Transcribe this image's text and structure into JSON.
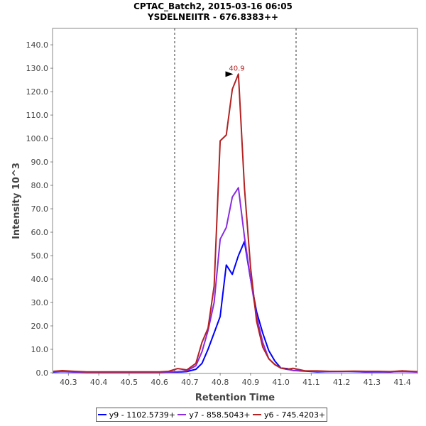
{
  "chart_data": {
    "type": "line",
    "title": "CPTAC_Batch2, 2015-03-16 06:05",
    "subtitle": "YSDELNEIITR - 676.8383++",
    "xlabel": "Retention Time",
    "ylabel": "Intensity 10^3",
    "xlim": [
      40.25,
      41.45
    ],
    "ylim": [
      0,
      147
    ],
    "x_ticks": [
      "40.3",
      "40.4",
      "40.5",
      "40.6",
      "40.7",
      "40.8",
      "40.9",
      "41.0",
      "41.1",
      "41.2",
      "41.3",
      "41.4"
    ],
    "x_tick_values": [
      40.3,
      40.4,
      40.5,
      40.6,
      40.7,
      40.8,
      40.9,
      41.0,
      41.1,
      41.2,
      41.3,
      41.4
    ],
    "y_ticks": [
      "0.0",
      "10.0",
      "20.0",
      "30.0",
      "40.0",
      "50.0",
      "60.0",
      "70.0",
      "80.0",
      "90.0",
      "100.0",
      "110.0",
      "120.0",
      "130.0",
      "140.0"
    ],
    "y_tick_values": [
      0,
      10,
      20,
      30,
      40,
      50,
      60,
      70,
      80,
      90,
      100,
      110,
      120,
      130,
      140
    ],
    "boundaries": [
      40.65,
      41.05
    ],
    "peak_annotation": {
      "label": "40.9",
      "x": 40.85,
      "y": 127.5
    },
    "series": [
      {
        "name": "y9 - 1102.5739+",
        "color": "#0000ff",
        "x": [
          40.25,
          40.28,
          40.32,
          40.36,
          40.4,
          40.45,
          40.5,
          40.55,
          40.6,
          40.63,
          40.66,
          40.69,
          40.72,
          40.74,
          40.76,
          40.78,
          40.8,
          40.82,
          40.84,
          40.86,
          40.88,
          40.9,
          40.92,
          40.94,
          40.96,
          40.98,
          41.0,
          41.02,
          41.04,
          41.08,
          41.12,
          41.16,
          41.2,
          41.24,
          41.28,
          41.32,
          41.36,
          41.4,
          41.45
        ],
        "values": [
          0.3,
          0.5,
          0.3,
          0.2,
          0.2,
          0.2,
          0.2,
          0.2,
          0.2,
          0.3,
          0.3,
          0.5,
          1.5,
          4,
          10,
          17,
          24,
          46,
          42,
          50,
          56,
          40,
          26,
          17,
          9.5,
          5,
          2,
          1.8,
          1,
          0.7,
          0.4,
          0.5,
          0.6,
          0.5,
          0.3,
          0.4,
          0.3,
          0.8,
          0.3
        ]
      },
      {
        "name": "y7 - 858.5043+",
        "color": "#8a2be2",
        "x": [
          40.25,
          40.28,
          40.32,
          40.36,
          40.4,
          40.45,
          40.5,
          40.55,
          40.6,
          40.63,
          40.66,
          40.69,
          40.72,
          40.74,
          40.76,
          40.78,
          40.8,
          40.82,
          40.84,
          40.86,
          40.88,
          40.9,
          40.92,
          40.94,
          40.96,
          40.98,
          41.0,
          41.02,
          41.04,
          41.08,
          41.12,
          41.16,
          41.2,
          41.24,
          41.28,
          41.32,
          41.36,
          41.4,
          41.45
        ],
        "values": [
          0.5,
          0.6,
          0.4,
          0.3,
          0.3,
          0.3,
          0.3,
          0.3,
          0.3,
          0.4,
          0.5,
          0.8,
          3,
          9,
          18,
          30,
          57,
          62,
          75,
          79,
          58,
          40,
          24,
          13,
          6,
          3.5,
          2,
          1.5,
          1,
          0.8,
          0.6,
          0.5,
          0.5,
          0.6,
          0.4,
          0.5,
          0.4,
          0.5,
          0.3
        ]
      },
      {
        "name": "y6 - 745.4203+",
        "color": "#b22222",
        "x": [
          40.25,
          40.28,
          40.32,
          40.36,
          40.4,
          40.45,
          40.5,
          40.55,
          40.6,
          40.63,
          40.66,
          40.69,
          40.72,
          40.74,
          40.76,
          40.78,
          40.8,
          40.82,
          40.84,
          40.86,
          40.88,
          40.9,
          40.92,
          40.94,
          40.96,
          40.98,
          41.0,
          41.02,
          41.04,
          41.08,
          41.12,
          41.16,
          41.2,
          41.24,
          41.28,
          41.32,
          41.36,
          41.4,
          41.45
        ],
        "values": [
          0.6,
          0.9,
          0.6,
          0.4,
          0.4,
          0.4,
          0.4,
          0.4,
          0.4,
          0.6,
          1.8,
          1.2,
          4,
          13,
          19,
          37,
          99,
          101.5,
          121,
          127.5,
          79,
          45,
          22,
          11,
          6,
          3.5,
          2,
          1.5,
          1.9,
          0.8,
          0.8,
          0.6,
          0.6,
          0.7,
          0.6,
          0.6,
          0.5,
          0.8,
          0.5
        ]
      }
    ]
  }
}
